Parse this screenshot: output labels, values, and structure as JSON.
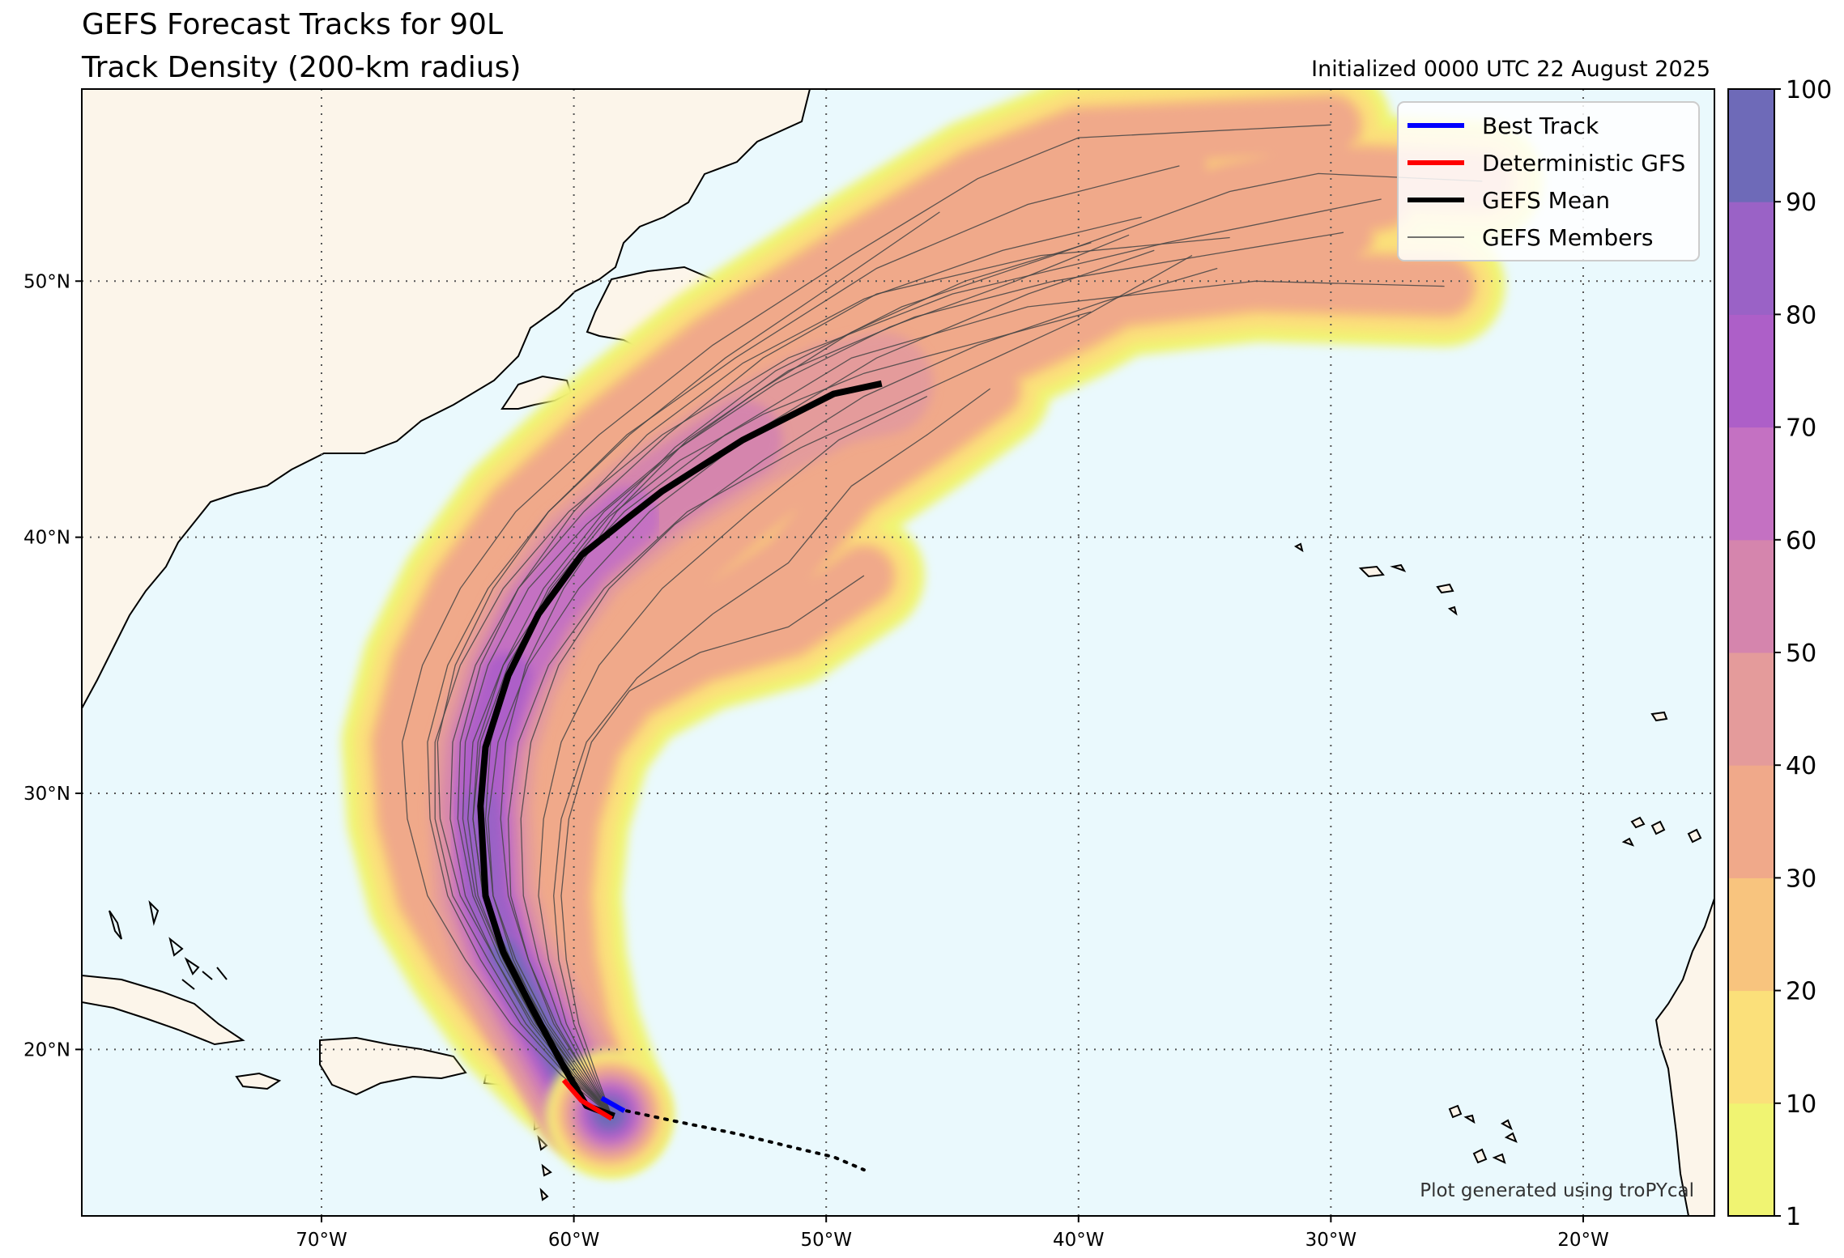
{
  "title_line1": "GEFS Forecast Tracks for 90L",
  "title_line2": "Track Density (200-km radius)",
  "initialized": "Initialized 0000 UTC 22 August 2025",
  "credit": "Plot generated using troPYcal",
  "colors": {
    "ocean": "#eaf9fd",
    "land": "#fcf5ea",
    "best_track": "#0000ff",
    "deterministic": "#ff0000",
    "mean": "#000000",
    "members": "#444444",
    "density_levels": [
      "#f0f472",
      "#fbe07a",
      "#f8c47e",
      "#f0a98a",
      "#e49b9b",
      "#d585ad",
      "#c471c2",
      "#ad5fc8",
      "#9a62c6",
      "#6e6ab8"
    ]
  },
  "chart_data": {
    "type": "map-track-density",
    "lon_range": [
      -79.5,
      -14.8
    ],
    "lat_range": [
      13.5,
      57.5
    ],
    "lon_ticks": [
      {
        "value": -70,
        "label": "70°W"
      },
      {
        "value": -60,
        "label": "60°W"
      },
      {
        "value": -50,
        "label": "50°W"
      },
      {
        "value": -40,
        "label": "40°W"
      },
      {
        "value": -30,
        "label": "30°W"
      },
      {
        "value": -20,
        "label": "20°W"
      }
    ],
    "lat_ticks": [
      {
        "value": 20,
        "label": "20°N"
      },
      {
        "value": 30,
        "label": "30°N"
      },
      {
        "value": 40,
        "label": "40°N"
      },
      {
        "value": 50,
        "label": "50°N"
      }
    ],
    "grid": true,
    "colorbar": {
      "boundaries": [
        1,
        10,
        20,
        30,
        40,
        50,
        60,
        70,
        80,
        90,
        100
      ],
      "labels": [
        "1",
        "10",
        "20",
        "30",
        "40",
        "50",
        "60",
        "70",
        "80",
        "90",
        "100"
      ]
    },
    "legend": {
      "placement": "top-right",
      "entries": [
        {
          "label": "Best Track",
          "color": "#0000ff",
          "style": "thick"
        },
        {
          "label": "Deterministic GFS",
          "color": "#ff0000",
          "style": "thick"
        },
        {
          "label": "GEFS Mean",
          "color": "#000000",
          "style": "thick"
        },
        {
          "label": "GEFS Members",
          "color": "#444444",
          "style": "thin"
        }
      ]
    },
    "best_track": [
      [
        -58.9,
        18.1
      ],
      [
        -58.0,
        17.6
      ]
    ],
    "past_track_dotted": [
      [
        -57.9,
        17.6
      ],
      [
        -56.0,
        17.2
      ],
      [
        -53.5,
        16.7
      ],
      [
        -51.0,
        16.1
      ],
      [
        -49.7,
        15.8
      ],
      [
        -48.5,
        15.3
      ]
    ],
    "deterministic_gfs": [
      [
        -60.4,
        18.8
      ],
      [
        -59.7,
        18.0
      ],
      [
        -58.5,
        17.3
      ]
    ],
    "gefs_mean": [
      [
        -58.4,
        17.4
      ],
      [
        -59.5,
        17.8
      ],
      [
        -60.5,
        19.5
      ],
      [
        -61.6,
        21.5
      ],
      [
        -62.8,
        23.8
      ],
      [
        -63.5,
        26.0
      ],
      [
        -63.7,
        29.5
      ],
      [
        -63.5,
        31.8
      ],
      [
        -62.6,
        34.6
      ],
      [
        -61.4,
        37.0
      ],
      [
        -59.7,
        39.3
      ],
      [
        -57.8,
        40.8
      ],
      [
        -56.5,
        41.8
      ],
      [
        -53.3,
        43.8
      ],
      [
        -49.7,
        45.6
      ],
      [
        -47.8,
        46.0
      ]
    ],
    "gefs_members": [
      [
        [
          -58.5,
          17.4
        ],
        [
          -60.0,
          19.0
        ],
        [
          -61.5,
          21.0
        ],
        [
          -62.8,
          23.5
        ],
        [
          -63.8,
          26.0
        ],
        [
          -64.2,
          29.0
        ],
        [
          -64.0,
          32.0
        ],
        [
          -62.8,
          35.0
        ],
        [
          -60.8,
          38.0
        ],
        [
          -58.0,
          41.0
        ],
        [
          -54.0,
          44.0
        ],
        [
          -49.0,
          47.0
        ],
        [
          -42.0,
          49.0
        ],
        [
          -33.0,
          50.0
        ],
        [
          -25.5,
          49.8
        ]
      ],
      [
        [
          -58.5,
          17.4
        ],
        [
          -60.2,
          19.0
        ],
        [
          -61.9,
          21.0
        ],
        [
          -63.4,
          23.5
        ],
        [
          -64.8,
          26.0
        ],
        [
          -65.5,
          29.0
        ],
        [
          -65.5,
          32.0
        ],
        [
          -64.5,
          35.0
        ],
        [
          -62.8,
          38.0
        ],
        [
          -60.2,
          41.0
        ],
        [
          -56.5,
          44.0
        ],
        [
          -51.5,
          47.0
        ],
        [
          -45.0,
          49.5
        ],
        [
          -36.5,
          51.5
        ],
        [
          -28.0,
          53.2
        ]
      ],
      [
        [
          -58.5,
          17.4
        ],
        [
          -60.5,
          19.0
        ],
        [
          -62.5,
          21.0
        ],
        [
          -64.3,
          23.5
        ],
        [
          -65.8,
          26.0
        ],
        [
          -66.6,
          29.0
        ],
        [
          -66.8,
          32.0
        ],
        [
          -66.0,
          35.0
        ],
        [
          -64.5,
          38.0
        ],
        [
          -62.3,
          41.0
        ],
        [
          -59.0,
          44.0
        ],
        [
          -54.5,
          47.5
        ],
        [
          -49.0,
          51.0
        ],
        [
          -44.0,
          54.0
        ],
        [
          -40.0,
          55.6
        ],
        [
          -30.0,
          56.1
        ]
      ],
      [
        [
          -58.5,
          17.4
        ],
        [
          -59.8,
          19.0
        ],
        [
          -61.2,
          21.0
        ],
        [
          -62.4,
          23.5
        ],
        [
          -63.2,
          26.0
        ],
        [
          -63.4,
          29.0
        ],
        [
          -63.0,
          32.0
        ],
        [
          -61.8,
          35.0
        ],
        [
          -59.8,
          38.0
        ],
        [
          -57.0,
          41.0
        ],
        [
          -53.0,
          44.0
        ],
        [
          -48.0,
          47.0
        ],
        [
          -42.0,
          49.5
        ],
        [
          -37.0,
          51.2
        ]
      ],
      [
        [
          -58.5,
          17.4
        ],
        [
          -59.5,
          19.0
        ],
        [
          -60.8,
          21.0
        ],
        [
          -61.8,
          23.5
        ],
        [
          -62.5,
          26.0
        ],
        [
          -62.6,
          29.0
        ],
        [
          -62.2,
          32.0
        ],
        [
          -61.0,
          35.0
        ],
        [
          -58.8,
          38.0
        ],
        [
          -55.5,
          41.0
        ],
        [
          -51.0,
          43.5
        ],
        [
          -45.5,
          46.0
        ],
        [
          -40.0,
          48.5
        ],
        [
          -35.5,
          51.0
        ]
      ],
      [
        [
          -58.5,
          17.4
        ],
        [
          -59.3,
          19.0
        ],
        [
          -60.3,
          21.0
        ],
        [
          -61.0,
          23.5
        ],
        [
          -61.4,
          26.0
        ],
        [
          -61.2,
          29.0
        ],
        [
          -60.5,
          32.0
        ],
        [
          -59.0,
          35.0
        ],
        [
          -56.5,
          38.0
        ],
        [
          -53.0,
          41.0
        ],
        [
          -49.5,
          43.8
        ],
        [
          -46.0,
          45.5
        ]
      ],
      [
        [
          -58.5,
          17.4
        ],
        [
          -59.2,
          19.0
        ],
        [
          -60.0,
          21.0
        ],
        [
          -60.6,
          23.5
        ],
        [
          -60.8,
          26.0
        ],
        [
          -60.5,
          29.0
        ],
        [
          -59.5,
          32.0
        ],
        [
          -57.5,
          34.5
        ],
        [
          -54.5,
          37.0
        ],
        [
          -51.5,
          39.0
        ],
        [
          -49.0,
          42.0
        ],
        [
          -46.0,
          44.0
        ],
        [
          -43.5,
          45.8
        ]
      ],
      [
        [
          -58.5,
          17.4
        ],
        [
          -59.6,
          19.0
        ],
        [
          -61.0,
          21.0
        ],
        [
          -62.3,
          23.5
        ],
        [
          -63.2,
          26.0
        ],
        [
          -63.5,
          29.0
        ],
        [
          -63.3,
          32.0
        ],
        [
          -62.5,
          35.0
        ],
        [
          -61.0,
          38.0
        ],
        [
          -59.0,
          40.5
        ],
        [
          -56.0,
          43.5
        ],
        [
          -52.0,
          46.5
        ],
        [
          -47.0,
          49.0
        ],
        [
          -41.0,
          51.0
        ],
        [
          -34.0,
          53.5
        ],
        [
          -30.5,
          54.2
        ],
        [
          -24.0,
          53.9
        ]
      ],
      [
        [
          -58.5,
          17.4
        ],
        [
          -59.7,
          19.0
        ],
        [
          -61.1,
          21.0
        ],
        [
          -62.5,
          23.5
        ],
        [
          -63.6,
          26.0
        ],
        [
          -64.0,
          29.0
        ],
        [
          -63.8,
          32.0
        ],
        [
          -62.8,
          35.0
        ],
        [
          -61.2,
          38.0
        ],
        [
          -58.8,
          41.0
        ],
        [
          -55.8,
          43.5
        ],
        [
          -52.0,
          46.0
        ],
        [
          -47.5,
          48.2
        ],
        [
          -42.5,
          50.0
        ],
        [
          -38.0,
          51.8
        ]
      ],
      [
        [
          -58.5,
          17.4
        ],
        [
          -59.9,
          19.0
        ],
        [
          -61.4,
          21.0
        ],
        [
          -62.8,
          23.5
        ],
        [
          -63.9,
          26.0
        ],
        [
          -64.4,
          29.0
        ],
        [
          -64.3,
          32.0
        ],
        [
          -63.4,
          35.0
        ],
        [
          -61.8,
          38.0
        ],
        [
          -59.5,
          40.5
        ],
        [
          -56.5,
          43.0
        ],
        [
          -53.0,
          45.5
        ],
        [
          -49.0,
          48.0
        ],
        [
          -44.5,
          50.0
        ],
        [
          -39.5,
          51.5
        ]
      ],
      [
        [
          -58.5,
          17.4
        ],
        [
          -60.1,
          19.0
        ],
        [
          -61.7,
          21.0
        ],
        [
          -63.1,
          23.5
        ],
        [
          -64.3,
          26.0
        ],
        [
          -64.9,
          29.0
        ],
        [
          -64.8,
          32.0
        ],
        [
          -63.9,
          35.0
        ],
        [
          -62.2,
          38.0
        ],
        [
          -59.6,
          41.0
        ],
        [
          -56.3,
          44.0
        ],
        [
          -52.5,
          47.0
        ],
        [
          -48.0,
          49.5
        ],
        [
          -41.5,
          51.0
        ],
        [
          -34.0,
          51.7
        ]
      ],
      [
        [
          -58.5,
          17.4
        ],
        [
          -60.3,
          19.0
        ],
        [
          -62.1,
          21.0
        ],
        [
          -63.7,
          23.5
        ],
        [
          -65.0,
          26.0
        ],
        [
          -65.7,
          29.0
        ],
        [
          -65.8,
          32.0
        ],
        [
          -65.0,
          35.0
        ],
        [
          -63.4,
          38.0
        ],
        [
          -61.0,
          41.0
        ],
        [
          -57.8,
          44.0
        ],
        [
          -54.0,
          47.0
        ],
        [
          -49.5,
          50.0
        ],
        [
          -45.5,
          52.7
        ]
      ],
      [
        [
          -58.5,
          17.4
        ],
        [
          -59.4,
          19.0
        ],
        [
          -60.5,
          21.0
        ],
        [
          -61.4,
          23.5
        ],
        [
          -62.0,
          26.0
        ],
        [
          -62.1,
          29.0
        ],
        [
          -61.7,
          32.0
        ],
        [
          -60.6,
          35.0
        ],
        [
          -58.6,
          38.0
        ],
        [
          -56.0,
          40.5
        ],
        [
          -52.5,
          43.0
        ],
        [
          -48.5,
          45.5
        ],
        [
          -44.0,
          47.5
        ],
        [
          -39.0,
          49.2
        ],
        [
          -34.5,
          50.5
        ]
      ],
      [
        [
          -58.5,
          17.4
        ],
        [
          -59.1,
          19.0
        ],
        [
          -59.8,
          21.0
        ],
        [
          -60.3,
          23.5
        ],
        [
          -60.5,
          26.0
        ],
        [
          -60.2,
          29.0
        ],
        [
          -59.3,
          32.0
        ],
        [
          -57.8,
          34.0
        ],
        [
          -55.0,
          35.5
        ],
        [
          -51.5,
          36.5
        ],
        [
          -48.5,
          38.5
        ]
      ],
      [
        [
          -58.5,
          17.4
        ],
        [
          -59.5,
          19.0
        ],
        [
          -60.7,
          21.0
        ],
        [
          -61.8,
          23.5
        ],
        [
          -62.6,
          26.0
        ],
        [
          -62.9,
          29.0
        ],
        [
          -62.7,
          32.0
        ],
        [
          -61.9,
          35.0
        ],
        [
          -60.4,
          38.0
        ],
        [
          -58.3,
          41.0
        ],
        [
          -55.5,
          43.8
        ],
        [
          -51.5,
          46.5
        ],
        [
          -46.5,
          48.6
        ],
        [
          -41.0,
          50.0
        ],
        [
          -35.0,
          51.0
        ],
        [
          -29.5,
          51.9
        ]
      ],
      [
        [
          -58.5,
          17.4
        ],
        [
          -60.0,
          19.0
        ],
        [
          -61.6,
          21.0
        ],
        [
          -63.1,
          23.5
        ],
        [
          -64.5,
          26.0
        ],
        [
          -65.3,
          29.0
        ],
        [
          -65.4,
          32.0
        ],
        [
          -64.7,
          35.0
        ],
        [
          -63.2,
          38.0
        ],
        [
          -61.0,
          41.0
        ],
        [
          -57.9,
          44.0
        ],
        [
          -53.6,
          47.0
        ],
        [
          -48.0,
          50.5
        ],
        [
          -42.0,
          53.0
        ],
        [
          -36.0,
          54.5
        ]
      ],
      [
        [
          -58.5,
          17.4
        ],
        [
          -59.8,
          19.0
        ],
        [
          -61.3,
          21.0
        ],
        [
          -62.6,
          23.5
        ],
        [
          -63.6,
          26.0
        ],
        [
          -64.0,
          29.0
        ],
        [
          -63.7,
          32.0
        ],
        [
          -62.6,
          35.0
        ],
        [
          -60.9,
          38.0
        ],
        [
          -58.6,
          40.8
        ],
        [
          -55.8,
          43.0
        ],
        [
          -52.5,
          44.8
        ],
        [
          -48.5,
          46.4
        ],
        [
          -44.0,
          47.6
        ],
        [
          -39.5,
          48.8
        ]
      ],
      [
        [
          -58.5,
          17.4
        ],
        [
          -59.9,
          19.0
        ],
        [
          -61.5,
          21.0
        ],
        [
          -62.9,
          23.5
        ],
        [
          -64.0,
          26.0
        ],
        [
          -64.6,
          29.0
        ],
        [
          -64.5,
          32.0
        ],
        [
          -63.7,
          35.0
        ],
        [
          -62.2,
          38.0
        ],
        [
          -60.0,
          41.0
        ],
        [
          -57.1,
          44.0
        ],
        [
          -53.3,
          46.8
        ],
        [
          -48.5,
          49.3
        ],
        [
          -43.0,
          51.2
        ],
        [
          -37.5,
          52.5
        ]
      ]
    ]
  }
}
